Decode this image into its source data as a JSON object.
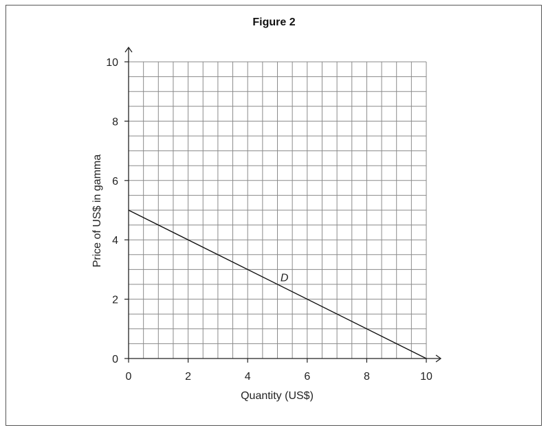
{
  "chart_data": {
    "type": "line",
    "title": "Figure 2",
    "xlabel": "Quantity (US$)",
    "ylabel": "Price of US$ in gamma",
    "xlim": [
      0,
      10
    ],
    "ylim": [
      0,
      10
    ],
    "x_ticks": [
      0,
      2,
      4,
      6,
      8,
      10
    ],
    "y_ticks": [
      0,
      2,
      4,
      6,
      8,
      10
    ],
    "minor_step": 0.5,
    "grid": true,
    "series": [
      {
        "name": "D",
        "x": [
          0,
          10
        ],
        "y": [
          5,
          0
        ],
        "label_at": [
          5.1,
          2.6
        ]
      }
    ]
  },
  "colors": {
    "grid": "#8a8a8a",
    "axis": "#222222",
    "line": "#111111"
  }
}
